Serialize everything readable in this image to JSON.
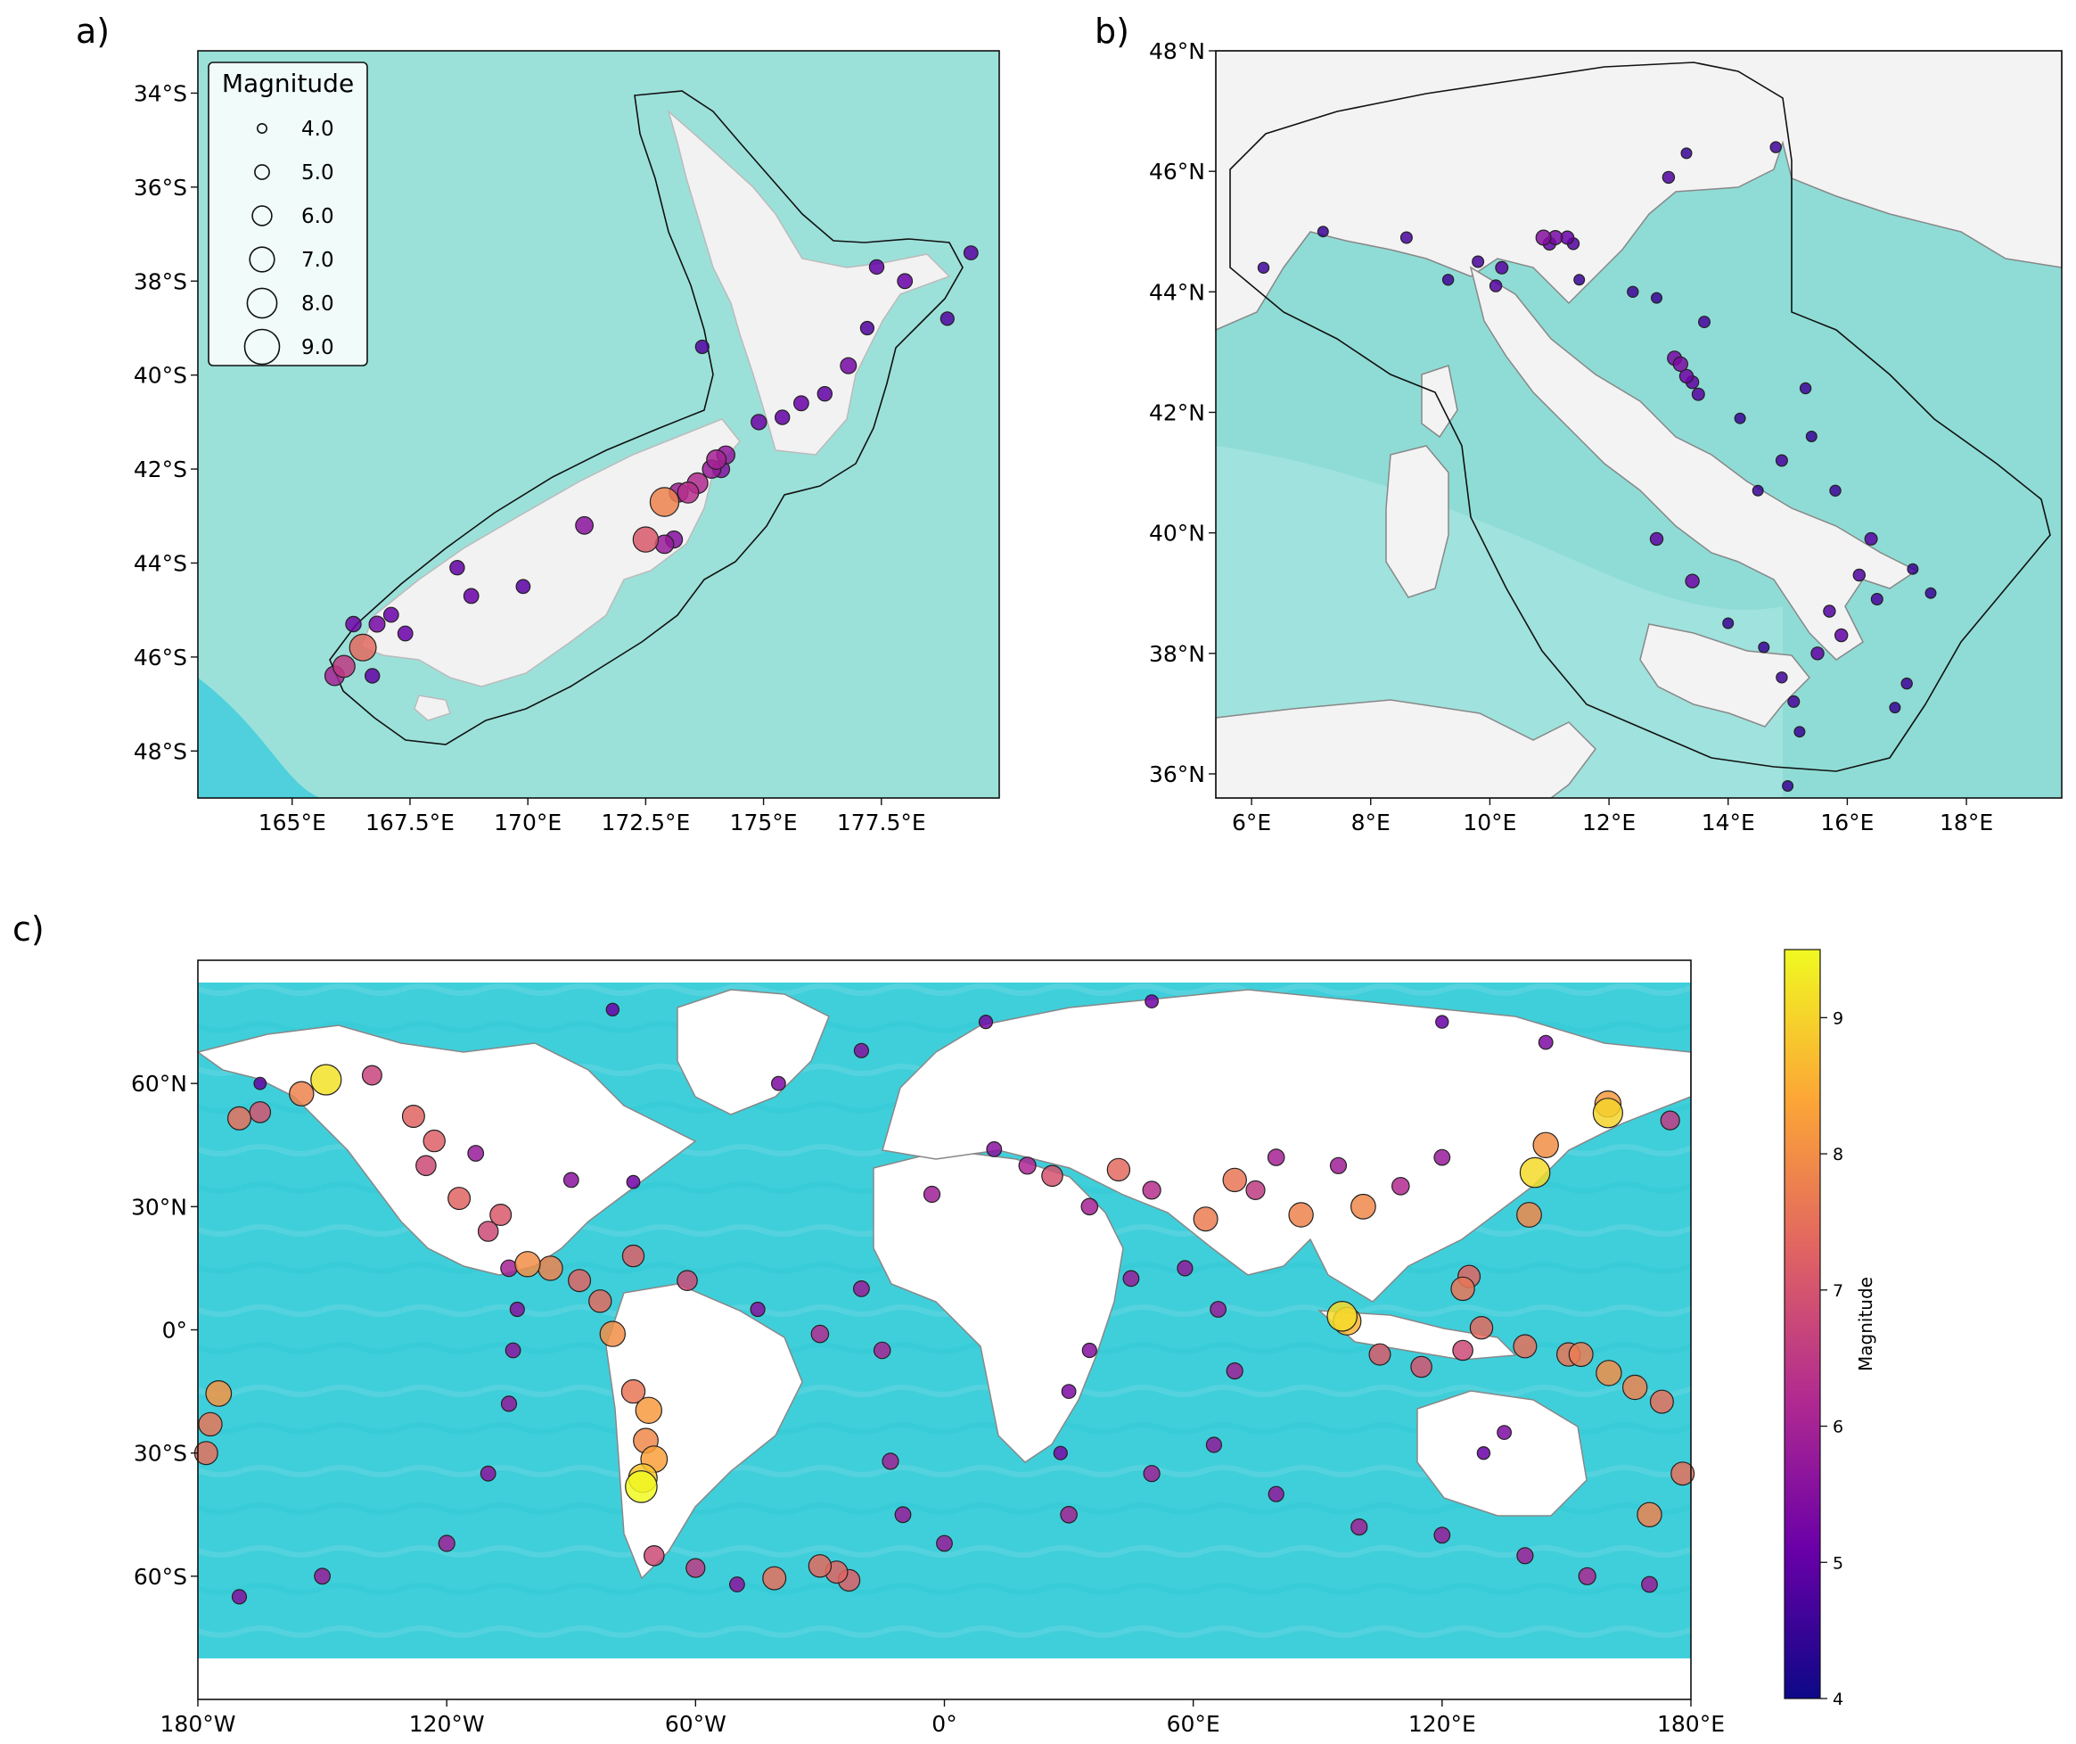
{
  "panels": {
    "a": {
      "label": "a)",
      "lon": [
        163,
        180
      ],
      "lat": [
        -49,
        -33.1
      ],
      "xticks": [
        {
          "v": 165,
          "t": "165°E"
        },
        {
          "v": 167.5,
          "t": "167.5°E"
        },
        {
          "v": 170,
          "t": "170°E"
        },
        {
          "v": 172.5,
          "t": "172.5°E"
        },
        {
          "v": 175,
          "t": "175°E"
        },
        {
          "v": 177.5,
          "t": "177.5°E"
        }
      ],
      "yticks": [
        {
          "v": -34,
          "t": "34°S"
        },
        {
          "v": -36,
          "t": "36°S"
        },
        {
          "v": -38,
          "t": "38°S"
        },
        {
          "v": -40,
          "t": "40°S"
        },
        {
          "v": -42,
          "t": "42°S"
        },
        {
          "v": -44,
          "t": "44°S"
        },
        {
          "v": -46,
          "t": "46°S"
        },
        {
          "v": -48,
          "t": "48°S"
        }
      ],
      "legend": {
        "title": "Magnitude",
        "entries": [
          {
            "mag": 4,
            "label": "4.0"
          },
          {
            "mag": 5,
            "label": "5.0"
          },
          {
            "mag": 6,
            "label": "6.0"
          },
          {
            "mag": 7,
            "label": "7.0"
          },
          {
            "mag": 8,
            "label": "8.0"
          },
          {
            "mag": 9,
            "label": "9.0"
          }
        ]
      },
      "events": [
        [
          174.0,
          -41.8,
          6.0
        ],
        [
          174.2,
          -41.7,
          5.7
        ],
        [
          173.9,
          -42.0,
          5.8
        ],
        [
          173.6,
          -42.3,
          6.2
        ],
        [
          173.2,
          -42.5,
          5.9
        ],
        [
          172.9,
          -42.7,
          7.8
        ],
        [
          173.4,
          -42.5,
          6.3
        ],
        [
          174.1,
          -42.0,
          5.5
        ],
        [
          172.5,
          -43.5,
          7.1
        ],
        [
          172.9,
          -43.6,
          5.8
        ],
        [
          173.1,
          -43.5,
          5.5
        ],
        [
          171.2,
          -43.2,
          5.6
        ],
        [
          169.9,
          -44.5,
          4.9
        ],
        [
          168.8,
          -44.7,
          5.1
        ],
        [
          168.5,
          -44.1,
          5.0
        ],
        [
          167.1,
          -45.1,
          5.1
        ],
        [
          166.5,
          -45.8,
          7.4
        ],
        [
          166.1,
          -46.2,
          6.5
        ],
        [
          165.9,
          -46.4,
          6.0
        ],
        [
          166.3,
          -45.3,
          5.2
        ],
        [
          166.8,
          -45.3,
          5.3
        ],
        [
          176.8,
          -39.8,
          5.3
        ],
        [
          176.3,
          -40.4,
          5.0
        ],
        [
          175.8,
          -40.6,
          5.1
        ],
        [
          175.4,
          -40.9,
          5.0
        ],
        [
          174.9,
          -41.0,
          5.2
        ],
        [
          177.2,
          -39.0,
          4.8
        ],
        [
          178.9,
          -38.8,
          4.8
        ],
        [
          178.0,
          -38.0,
          5.1
        ],
        [
          177.4,
          -37.7,
          5.0
        ],
        [
          179.4,
          -37.4,
          4.9
        ],
        [
          173.7,
          -39.4,
          4.8
        ],
        [
          166.7,
          -46.4,
          5.0
        ],
        [
          167.4,
          -45.5,
          5.1
        ]
      ]
    },
    "b": {
      "label": "b)",
      "lon": [
        5.4,
        19.6
      ],
      "lat": [
        35.6,
        48
      ],
      "xticks": [
        {
          "v": 6,
          "t": "6°E"
        },
        {
          "v": 8,
          "t": "8°E"
        },
        {
          "v": 10,
          "t": "10°E"
        },
        {
          "v": 12,
          "t": "12°E"
        },
        {
          "v": 14,
          "t": "14°E"
        },
        {
          "v": 16,
          "t": "16°E"
        },
        {
          "v": 18,
          "t": "18°E"
        }
      ],
      "yticks": [
        {
          "v": 36,
          "t": "36°N"
        },
        {
          "v": 38,
          "t": "38°N"
        },
        {
          "v": 40,
          "t": "40°N"
        },
        {
          "v": 42,
          "t": "42°N"
        },
        {
          "v": 44,
          "t": "44°N"
        },
        {
          "v": 46,
          "t": "46°N"
        },
        {
          "v": 48,
          "t": "48°N"
        }
      ],
      "events": [
        [
          13.2,
          42.8,
          5.4
        ],
        [
          13.3,
          42.6,
          5.2
        ],
        [
          13.1,
          42.9,
          5.3
        ],
        [
          13.4,
          42.5,
          5.0
        ],
        [
          13.5,
          42.3,
          4.9
        ],
        [
          10.9,
          44.9,
          5.5
        ],
        [
          11.1,
          44.9,
          5.3
        ],
        [
          11.3,
          44.9,
          5.1
        ],
        [
          11.0,
          44.8,
          5.0
        ],
        [
          11.4,
          44.8,
          4.8
        ],
        [
          9.8,
          44.5,
          4.7
        ],
        [
          10.2,
          44.4,
          4.9
        ],
        [
          9.3,
          44.2,
          4.6
        ],
        [
          8.6,
          44.9,
          4.7
        ],
        [
          7.2,
          45.0,
          4.5
        ],
        [
          6.2,
          44.4,
          4.6
        ],
        [
          10.1,
          44.1,
          4.8
        ],
        [
          11.5,
          44.2,
          4.5
        ],
        [
          12.4,
          44.0,
          4.6
        ],
        [
          13.6,
          43.5,
          4.7
        ],
        [
          12.8,
          43.9,
          4.5
        ],
        [
          13.0,
          45.9,
          4.8
        ],
        [
          13.3,
          46.3,
          4.5
        ],
        [
          14.8,
          46.4,
          4.6
        ],
        [
          14.2,
          41.9,
          4.5
        ],
        [
          14.9,
          41.2,
          4.7
        ],
        [
          15.4,
          41.6,
          4.5
        ],
        [
          15.8,
          40.7,
          4.6
        ],
        [
          16.4,
          39.9,
          4.9
        ],
        [
          16.2,
          39.3,
          4.8
        ],
        [
          15.7,
          38.7,
          4.8
        ],
        [
          15.9,
          38.3,
          5.0
        ],
        [
          15.5,
          38.0,
          5.0
        ],
        [
          14.9,
          37.6,
          4.6
        ],
        [
          15.1,
          37.2,
          4.7
        ],
        [
          14.6,
          38.1,
          4.5
        ],
        [
          14.0,
          38.5,
          4.5
        ],
        [
          13.4,
          39.2,
          5.2
        ],
        [
          12.8,
          39.9,
          5.0
        ],
        [
          17.4,
          39.0,
          4.5
        ],
        [
          17.0,
          37.5,
          4.6
        ],
        [
          16.8,
          37.1,
          4.5
        ],
        [
          15.0,
          35.8,
          4.5
        ],
        [
          15.2,
          36.7,
          4.5
        ],
        [
          16.5,
          38.9,
          4.7
        ],
        [
          17.1,
          39.4,
          4.5
        ],
        [
          15.3,
          42.4,
          4.6
        ],
        [
          14.5,
          40.7,
          4.5
        ]
      ]
    },
    "c": {
      "label": "c)",
      "lon": [
        -180,
        180
      ],
      "lat": [
        -90,
        90
      ],
      "xticks": [
        {
          "v": -180,
          "t": "180°W"
        },
        {
          "v": -120,
          "t": "120°W"
        },
        {
          "v": -60,
          "t": "60°W"
        },
        {
          "v": 0,
          "t": "0°"
        },
        {
          "v": 60,
          "t": "60°E"
        },
        {
          "v": 120,
          "t": "120°E"
        },
        {
          "v": 180,
          "t": "180°E"
        }
      ],
      "yticks": [
        {
          "v": 60,
          "t": "60°N"
        },
        {
          "v": 30,
          "t": "30°N"
        },
        {
          "v": 0,
          "t": "0°"
        },
        {
          "v": -30,
          "t": "30°S"
        },
        {
          "v": -60,
          "t": "60°S"
        }
      ],
      "colorbar": {
        "label": "Magnitude",
        "min": 4,
        "max": 9.5,
        "ticks": [
          {
            "v": 4,
            "t": "4"
          },
          {
            "v": 5,
            "t": "5"
          },
          {
            "v": 6,
            "t": "6"
          },
          {
            "v": 7,
            "t": "7"
          },
          {
            "v": 8,
            "t": "8"
          },
          {
            "v": 9,
            "t": "9"
          }
        ]
      },
      "events": [
        [
          142.4,
          38.3,
          9.1
        ],
        [
          95.9,
          3.3,
          9.1
        ],
        [
          -72.7,
          -36.1,
          8.8
        ],
        [
          -73.1,
          -38.2,
          9.5
        ],
        [
          -149.1,
          60.9,
          9.2
        ],
        [
          160.0,
          52.8,
          9.0
        ],
        [
          -71.3,
          -19.6,
          8.2
        ],
        [
          -80.0,
          -1.0,
          8.0
        ],
        [
          97.1,
          2.1,
          8.6
        ],
        [
          -100.5,
          16.0,
          8.0
        ],
        [
          -95.0,
          15.0,
          7.8
        ],
        [
          -175.0,
          -15.5,
          8.1
        ],
        [
          -177.0,
          -23.0,
          7.6
        ],
        [
          -178.0,
          -30.0,
          7.5
        ],
        [
          -30.0,
          -57.5,
          7.4
        ],
        [
          -26.0,
          -59.0,
          7.3
        ],
        [
          -23.0,
          -61.0,
          7.2
        ],
        [
          -41.0,
          -60.5,
          7.5
        ],
        [
          -70.0,
          -31.5,
          8.3
        ],
        [
          -72.0,
          -27.0,
          7.9
        ],
        [
          -75.0,
          -15.0,
          7.6
        ],
        [
          160.2,
          -10.5,
          8.0
        ],
        [
          166.5,
          -14.0,
          7.8
        ],
        [
          173.0,
          -17.5,
          7.5
        ],
        [
          178.0,
          -35.0,
          7.5
        ],
        [
          170.0,
          -45.0,
          7.8
        ],
        [
          153.5,
          -6.0,
          7.7
        ],
        [
          150.5,
          -6.0,
          7.6
        ],
        [
          140.0,
          -4.0,
          7.5
        ],
        [
          129.5,
          0.5,
          7.4
        ],
        [
          125.0,
          10.0,
          7.6
        ],
        [
          126.5,
          13.0,
          7.3
        ],
        [
          101.0,
          30.0,
          7.9
        ],
        [
          86.0,
          28.0,
          7.8
        ],
        [
          70.0,
          36.5,
          7.6
        ],
        [
          63.0,
          27.0,
          7.7
        ],
        [
          42.0,
          39.0,
          7.4
        ],
        [
          26.0,
          37.5,
          7.0
        ],
        [
          -75.0,
          18.0,
          7.2
        ],
        [
          -62.0,
          12.0,
          6.8
        ],
        [
          -123.0,
          46.0,
          7.2
        ],
        [
          -128.0,
          52.0,
          7.3
        ],
        [
          -155.0,
          57.5,
          7.8
        ],
        [
          -170.0,
          51.5,
          7.5
        ],
        [
          160.0,
          55.0,
          8.2
        ],
        [
          145.0,
          45.0,
          8.0
        ],
        [
          141.0,
          28.0,
          7.9
        ],
        [
          -107.0,
          28.0,
          7.1
        ],
        [
          -117.0,
          32.0,
          7.3
        ],
        [
          -83.0,
          7.0,
          7.4
        ],
        [
          -88.0,
          12.0,
          7.3
        ],
        [
          -110.0,
          24.0,
          6.8
        ],
        [
          -45.0,
          5.0,
          5.5
        ],
        [
          -30.0,
          -1.0,
          6.2
        ],
        [
          -20.0,
          10.0,
          5.8
        ],
        [
          -15.0,
          -5.0,
          6.0
        ],
        [
          -13.0,
          -32.0,
          5.9
        ],
        [
          -10.0,
          -45.0,
          5.8
        ],
        [
          0.0,
          -52.0,
          5.8
        ],
        [
          30.0,
          -45.0,
          6.0
        ],
        [
          50.0,
          -35.0,
          5.9
        ],
        [
          65.0,
          -28.0,
          5.7
        ],
        [
          70.0,
          -10.0,
          5.9
        ],
        [
          66.0,
          5.0,
          5.8
        ],
        [
          58.0,
          15.0,
          5.7
        ],
        [
          45.0,
          12.5,
          5.8
        ],
        [
          35.0,
          -5.0,
          5.5
        ],
        [
          30.0,
          -15.0,
          5.4
        ],
        [
          80.0,
          -40.0,
          5.7
        ],
        [
          100.0,
          -48.0,
          5.9
        ],
        [
          120.0,
          -50.0,
          5.8
        ],
        [
          140.0,
          -55.0,
          5.9
        ],
        [
          155.0,
          -60.0,
          6.1
        ],
        [
          170.0,
          -62.0,
          5.8
        ],
        [
          -150.0,
          -60.0,
          5.8
        ],
        [
          -120.0,
          -52.0,
          5.9
        ],
        [
          -110.0,
          -35.0,
          5.6
        ],
        [
          -105.0,
          -18.0,
          5.7
        ],
        [
          -104.0,
          -5.0,
          5.6
        ],
        [
          -103.0,
          5.0,
          5.5
        ],
        [
          -105.0,
          15.0,
          6.0
        ],
        [
          -125.0,
          40.0,
          6.8
        ],
        [
          -165.0,
          53.0,
          7.0
        ],
        [
          175.0,
          51.0,
          6.5
        ],
        [
          -40.0,
          60.0,
          5.4
        ],
        [
          -20.0,
          68.0,
          5.5
        ],
        [
          10.0,
          75.0,
          5.3
        ],
        [
          50.0,
          80.0,
          5.2
        ],
        [
          120.0,
          75.0,
          5.1
        ],
        [
          145.0,
          70.0,
          5.4
        ],
        [
          -80.0,
          78.0,
          5.1
        ],
        [
          -165.0,
          60.0,
          5.0
        ],
        [
          120.0,
          42.0,
          5.8
        ],
        [
          110.0,
          35.0,
          6.2
        ],
        [
          95.0,
          40.0,
          5.9
        ],
        [
          80.0,
          42.0,
          6.0
        ],
        [
          75.0,
          34.0,
          6.5
        ],
        [
          50.0,
          34.0,
          6.3
        ],
        [
          35.0,
          30.0,
          6.0
        ],
        [
          20.0,
          40.0,
          6.1
        ],
        [
          12.0,
          44.0,
          5.6
        ],
        [
          125.0,
          -5.0,
          6.8
        ],
        [
          115.0,
          -9.0,
          7.0
        ],
        [
          105.0,
          -6.0,
          7.1
        ],
        [
          130.0,
          -30.0,
          5.1
        ],
        [
          135.0,
          -25.0,
          5.4
        ],
        [
          -70.0,
          -55.0,
          6.8
        ],
        [
          -60.0,
          -58.0,
          6.5
        ],
        [
          -170.0,
          -65.0,
          5.5
        ],
        [
          -50.0,
          -62.0,
          5.6
        ],
        [
          28.0,
          -30.0,
          5.3
        ],
        [
          -3.0,
          33.0,
          5.9
        ],
        [
          -75.0,
          36.0,
          5.2
        ],
        [
          -90.0,
          36.5,
          5.6
        ],
        [
          -113.0,
          43.0,
          5.8
        ],
        [
          -138.0,
          62.0,
          6.7
        ]
      ]
    }
  }
}
